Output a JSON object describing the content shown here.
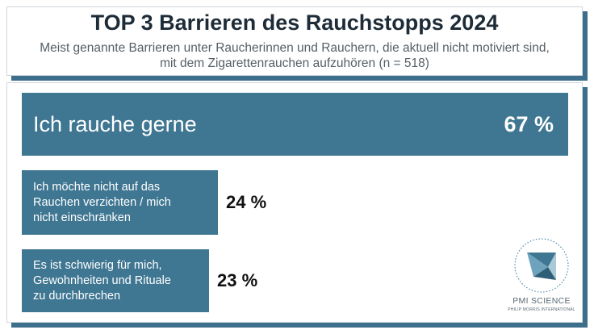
{
  "header": {
    "title": "TOP 3 Barrieren des Rauchstopps 2024",
    "subtitle": "Meist genannte Barrieren unter Raucherinnen und Rauchern, die aktuell nicht motiviert sind, mit dem Zigarettenrauchen aufzuhören (n = 518)"
  },
  "chart_data": {
    "type": "bar",
    "orientation": "horizontal",
    "title": "TOP 3 Barrieren des Rauchstopps 2024",
    "subtitle": "Meist genannte Barrieren unter Raucherinnen und Rauchern, die aktuell nicht motiviert sind, mit dem Zigarettenrauchen aufzuhören (n = 518)",
    "categories": [
      "Ich rauche gerne",
      "Ich möchte nicht auf das\nRauchen verzichten / mich\nnicht einschränken",
      "Es ist schwierig für mich,\nGewohnheiten und Rituale\nzu durchbrechen"
    ],
    "values": [
      67,
      24,
      23
    ],
    "value_labels": [
      "67 %",
      "24 %",
      "23 %"
    ],
    "unit": "%",
    "xlim": [
      0,
      67
    ],
    "grid": false,
    "bar_color": "#3f7692"
  },
  "logo": {
    "name": "PMI SCIENCE",
    "sub": "PHILIP MORRIS INTERNATIONAL"
  }
}
